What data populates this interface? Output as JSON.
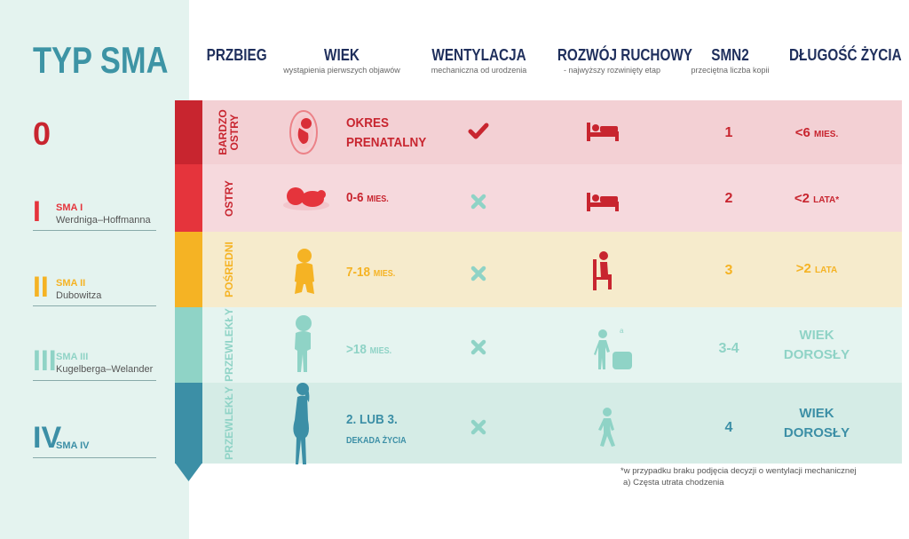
{
  "title": "TYP SMA",
  "headers": {
    "course": {
      "title": "PRZBIEG"
    },
    "age": {
      "title": "WIEK",
      "sub": "wystąpienia pierwszych objawów"
    },
    "ventilation": {
      "title": "WENTYLACJA",
      "sub": "mechaniczna od urodzenia"
    },
    "motor": {
      "title": "ROZWÓJ RUCHOWY",
      "sub": "- najwyższy rozwinięty etap"
    },
    "smn2": {
      "title": "SMN2",
      "sub": "przeciętna liczba kopii"
    },
    "life": {
      "title": "DŁUGOŚĆ ŻYCIA"
    }
  },
  "types": [
    {
      "num": "0",
      "label": "",
      "name": "",
      "color": "#c8252f"
    },
    {
      "num": "I",
      "label": "SMA I",
      "name": "Werdniga–Hoffmanna",
      "color": "#e5343c"
    },
    {
      "num": "II",
      "label": "SMA II",
      "name": "Dubowitza",
      "color": "#f5b324"
    },
    {
      "num": "III",
      "label": "SMA III",
      "name": "Kugelberga–Welander",
      "color": "#8fd3c6"
    },
    {
      "num": "IV",
      "label": "SMA IV",
      "name": "",
      "color": "#3c8fa6"
    }
  ],
  "rows": [
    {
      "course": "BARDZO OSTRY",
      "age_main": "OKRES",
      "age_unit": "PRENATALNY",
      "ventilation": "check",
      "motor": "bed-icon",
      "smn2": "1",
      "life_main": "<6",
      "life_unit": "MIES.",
      "row_bg": "#f3d0d4",
      "text_color": "#c8252f",
      "bar_color": "#c8252f"
    },
    {
      "course": "OSTRY",
      "age_main": "0-6",
      "age_unit": "MIES.",
      "ventilation": "cross",
      "motor": "bed-icon",
      "smn2": "2",
      "life_main": "<2",
      "life_unit": "LATA*",
      "row_bg": "#f6d9dd",
      "text_color": "#c8252f",
      "bar_color": "#e5343c"
    },
    {
      "course": "POŚREDNI",
      "age_main": "7-18",
      "age_unit": "MIES.",
      "ventilation": "cross",
      "motor": "sitting-icon",
      "smn2": "3",
      "life_main": ">2",
      "life_unit": "LATA",
      "row_bg": "#f6ebcc",
      "text_color": "#f5b324",
      "bar_color": "#f5b324"
    },
    {
      "course": "PRZEWLEKŁY",
      "age_main": ">18",
      "age_unit": "MIES.",
      "ventilation": "cross",
      "motor": "standing-icon",
      "motor_note": "a",
      "smn2": "3-4",
      "life_main": "WIEK",
      "life_unit": "DOROSŁY",
      "row_bg": "#e5f4f0",
      "text_color": "#8fd3c6",
      "bar_color": "#8fd3c6"
    },
    {
      "course": "PRZEWLEKŁY",
      "age_main": "2. LUB 3.",
      "age_unit": "DEKADA ŻYCIA",
      "ventilation": "cross",
      "motor": "walking-icon",
      "smn2": "4",
      "life_main": "WIEK",
      "life_unit": "DOROSŁY",
      "row_bg": "#d5ece6",
      "text_color": "#3c8fa6",
      "bar_color": "#3c8fa6"
    }
  ],
  "footnotes": {
    "star": "*w przypadku braku podjęcia decyzji o wentylacji mechanicznej",
    "a": "a) Częsta utrata chodzenia"
  },
  "colors": {
    "check": "#c8252f",
    "cross": "#8fd3c6",
    "motor_dark": "#c8252f",
    "motor_light": "#8fd3c6",
    "navy": "#1f2f5c",
    "teal": "#3d94a5"
  }
}
